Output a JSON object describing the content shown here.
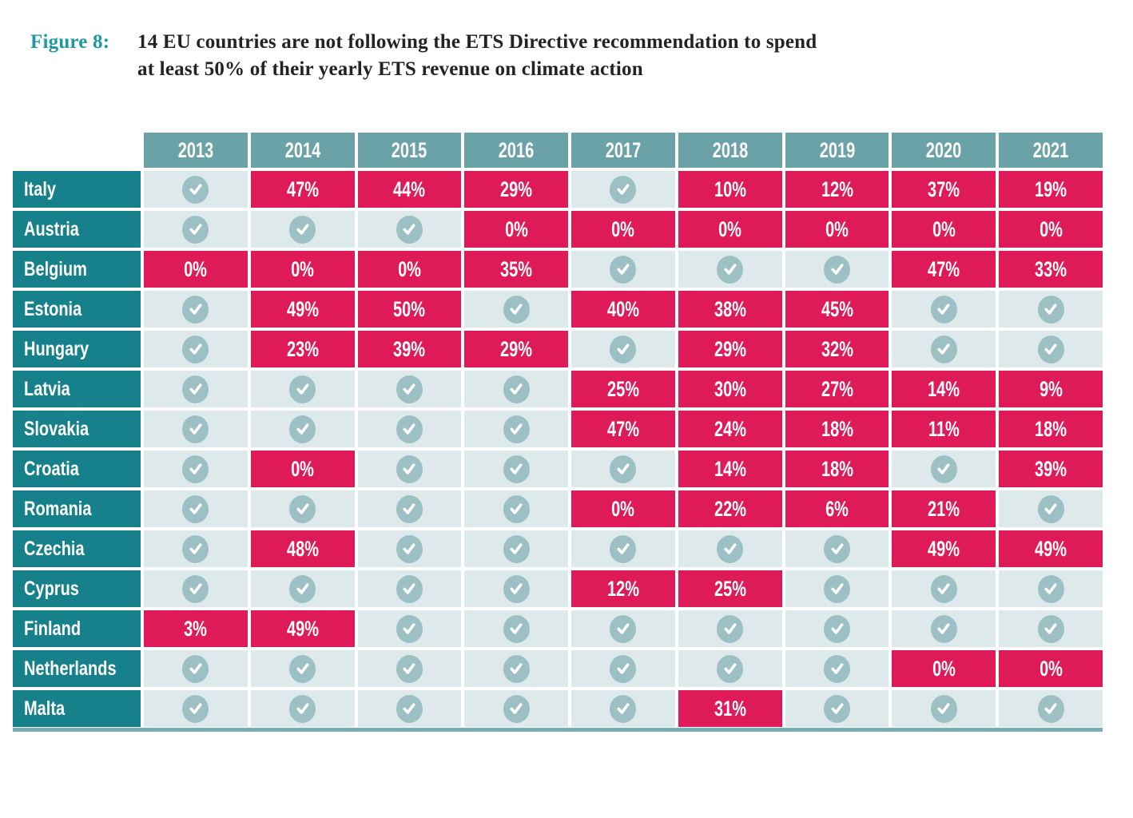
{
  "figure": {
    "number_label": "Figure 8:",
    "title_lines": [
      "14 EU countries are not following the ETS Directive recommendation to spend",
      "at least 50% of their yearly ETS revenue on climate action"
    ]
  },
  "colors": {
    "figure_number": "#1d9aa1",
    "title_text": "#262223",
    "year_header_bg": "#6ba2a7",
    "country_bg": "#17818b",
    "check_cell_bg": "#dde9ea",
    "percent_cell_bg": "#df1a58",
    "check_circle": "#9cc0c3",
    "bottom_rule": "#79aeb4"
  },
  "icons": {
    "check_icon": "checkmark-in-circle"
  },
  "chart_data": {
    "type": "table",
    "title": "14 EU countries are not following the ETS Directive recommendation to spend at least 50% of their yearly ETS revenue on climate action",
    "columns": [
      "2013",
      "2014",
      "2015",
      "2016",
      "2017",
      "2018",
      "2019",
      "2020",
      "2021"
    ],
    "cell_encoding": {
      "check": "checkmark cell (light background)",
      "percent": "percentage spent on climate action (pink background)"
    },
    "rows": [
      {
        "country": "Italy",
        "values": [
          "check",
          "47%",
          "44%",
          "29%",
          "check",
          "10%",
          "12%",
          "37%",
          "19%"
        ]
      },
      {
        "country": "Austria",
        "values": [
          "check",
          "check",
          "check",
          "0%",
          "0%",
          "0%",
          "0%",
          "0%",
          "0%"
        ]
      },
      {
        "country": "Belgium",
        "values": [
          "0%",
          "0%",
          "0%",
          "35%",
          "check",
          "check",
          "check",
          "47%",
          "33%"
        ]
      },
      {
        "country": "Estonia",
        "values": [
          "check",
          "49%",
          "50%",
          "check",
          "40%",
          "38%",
          "45%",
          "check",
          "check"
        ]
      },
      {
        "country": "Hungary",
        "values": [
          "check",
          "23%",
          "39%",
          "29%",
          "check",
          "29%",
          "32%",
          "check",
          "check"
        ]
      },
      {
        "country": "Latvia",
        "values": [
          "check",
          "check",
          "check",
          "check",
          "25%",
          "30%",
          "27%",
          "14%",
          "9%"
        ]
      },
      {
        "country": "Slovakia",
        "values": [
          "check",
          "check",
          "check",
          "check",
          "47%",
          "24%",
          "18%",
          "11%",
          "18%"
        ]
      },
      {
        "country": "Croatia",
        "values": [
          "check",
          "0%",
          "check",
          "check",
          "check",
          "14%",
          "18%",
          "check",
          "39%"
        ]
      },
      {
        "country": "Romania",
        "values": [
          "check",
          "check",
          "check",
          "check",
          "0%",
          "22%",
          "6%",
          "21%",
          "check"
        ]
      },
      {
        "country": "Czechia",
        "values": [
          "check",
          "48%",
          "check",
          "check",
          "check",
          "check",
          "check",
          "49%",
          "49%"
        ]
      },
      {
        "country": "Cyprus",
        "values": [
          "check",
          "check",
          "check",
          "check",
          "12%",
          "25%",
          "check",
          "check",
          "check"
        ]
      },
      {
        "country": "Finland",
        "values": [
          "3%",
          "49%",
          "check",
          "check",
          "check",
          "check",
          "check",
          "check",
          "check"
        ]
      },
      {
        "country": "Netherlands",
        "values": [
          "check",
          "check",
          "check",
          "check",
          "check",
          "check",
          "check",
          "0%",
          "0%"
        ]
      },
      {
        "country": "Malta",
        "values": [
          "check",
          "check",
          "check",
          "check",
          "check",
          "31%",
          "check",
          "check",
          "check"
        ]
      }
    ]
  }
}
